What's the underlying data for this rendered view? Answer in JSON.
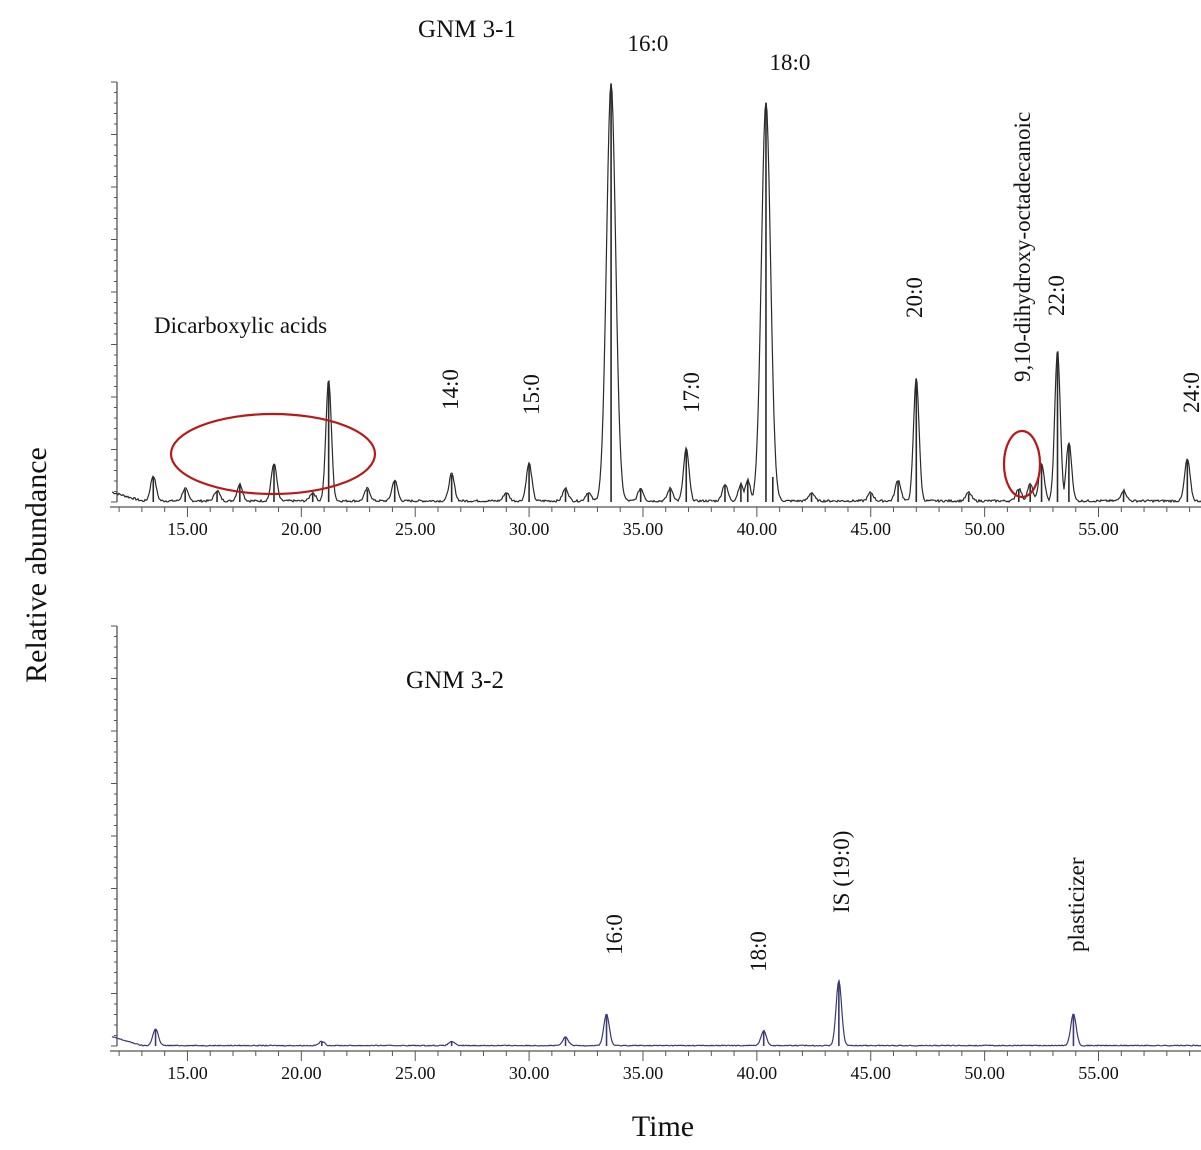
{
  "ylabel": "Relative abundance",
  "xlabel": "Time",
  "colors": {
    "trace1": "#2a2a2a",
    "trace2": "#3a3a70",
    "highlight": "#b81818"
  },
  "chart_data": [
    {
      "type": "line",
      "title": "GNM 3-1",
      "xlabel": "Time",
      "ylabel": "Relative abundance",
      "xlim": [
        11.6,
        59.5
      ],
      "ylim": [
        0,
        100
      ],
      "xticks": [
        "15.00",
        "20.00",
        "25.00",
        "30.00",
        "35.00",
        "40.00",
        "45.00",
        "50.00",
        "55.00"
      ],
      "peaks": [
        {
          "x": 13.5,
          "y": 6
        },
        {
          "x": 14.9,
          "y": 3
        },
        {
          "x": 16.3,
          "y": 2.5
        },
        {
          "x": 17.3,
          "y": 4
        },
        {
          "x": 18.8,
          "y": 9
        },
        {
          "x": 20.5,
          "y": 2
        },
        {
          "x": 21.2,
          "y": 29
        },
        {
          "x": 22.9,
          "y": 3
        },
        {
          "x": 24.1,
          "y": 5
        },
        {
          "x": 26.6,
          "y": 6.5
        },
        {
          "x": 29.0,
          "y": 2
        },
        {
          "x": 30.0,
          "y": 9
        },
        {
          "x": 31.6,
          "y": 3
        },
        {
          "x": 32.6,
          "y": 2
        },
        {
          "x": 33.6,
          "y": 100
        },
        {
          "x": 34.9,
          "y": 3
        },
        {
          "x": 36.2,
          "y": 3
        },
        {
          "x": 36.9,
          "y": 12.5
        },
        {
          "x": 38.6,
          "y": 4
        },
        {
          "x": 39.3,
          "y": 4
        },
        {
          "x": 39.6,
          "y": 5
        },
        {
          "x": 40.4,
          "y": 95.5
        },
        {
          "x": 40.7,
          "y": 6
        },
        {
          "x": 42.4,
          "y": 2
        },
        {
          "x": 45.0,
          "y": 2
        },
        {
          "x": 46.2,
          "y": 5
        },
        {
          "x": 47.0,
          "y": 29.5
        },
        {
          "x": 49.3,
          "y": 2
        },
        {
          "x": 51.5,
          "y": 3
        },
        {
          "x": 52.0,
          "y": 4
        },
        {
          "x": 52.5,
          "y": 9
        },
        {
          "x": 53.2,
          "y": 36
        },
        {
          "x": 53.7,
          "y": 14
        },
        {
          "x": 56.1,
          "y": 2.5
        },
        {
          "x": 58.9,
          "y": 10
        }
      ],
      "annotations": [
        {
          "text": "Dicarboxylic  acids",
          "x": 18.5,
          "orientation": "horizontal"
        },
        {
          "text": "14:0",
          "x": 26.6,
          "orientation": "vertical"
        },
        {
          "text": "15:0",
          "x": 30.0,
          "orientation": "vertical"
        },
        {
          "text": "16:0",
          "x": 33.6,
          "orientation": "horizontal"
        },
        {
          "text": "17:0",
          "x": 36.9,
          "orientation": "vertical"
        },
        {
          "text": "18:0",
          "x": 40.4,
          "orientation": "horizontal"
        },
        {
          "text": "20:0",
          "x": 47.0,
          "orientation": "vertical"
        },
        {
          "text": "9,10-dihydroxy-octadecanoic",
          "x": 52.3,
          "orientation": "vertical"
        },
        {
          "text": "22:0",
          "x": 53.2,
          "orientation": "vertical"
        },
        {
          "text": "24:0",
          "x": 59.2,
          "orientation": "vertical"
        }
      ]
    },
    {
      "type": "line",
      "title": "GNM 3-2",
      "xlabel": "Time",
      "ylabel": "Relative abundance",
      "xlim": [
        11.6,
        59.5
      ],
      "ylim": [
        0,
        100
      ],
      "xticks": [
        "15.00",
        "20.00",
        "25.00",
        "30.00",
        "35.00",
        "40.00",
        "45.00",
        "50.00",
        "55.00"
      ],
      "peaks": [
        {
          "x": 13.6,
          "y": 4
        },
        {
          "x": 20.9,
          "y": 1
        },
        {
          "x": 26.6,
          "y": 1
        },
        {
          "x": 31.6,
          "y": 2
        },
        {
          "x": 33.4,
          "y": 7.5
        },
        {
          "x": 40.3,
          "y": 3.5
        },
        {
          "x": 43.6,
          "y": 15.5
        },
        {
          "x": 53.9,
          "y": 7.5
        }
      ],
      "annotations": [
        {
          "text": "16:0",
          "x": 33.4,
          "orientation": "vertical"
        },
        {
          "text": "18:0",
          "x": 40.3,
          "orientation": "vertical"
        },
        {
          "text": "IS (19:0)",
          "x": 43.6,
          "orientation": "vertical"
        },
        {
          "text": "plasticizer",
          "x": 53.9,
          "orientation": "vertical"
        }
      ]
    }
  ]
}
